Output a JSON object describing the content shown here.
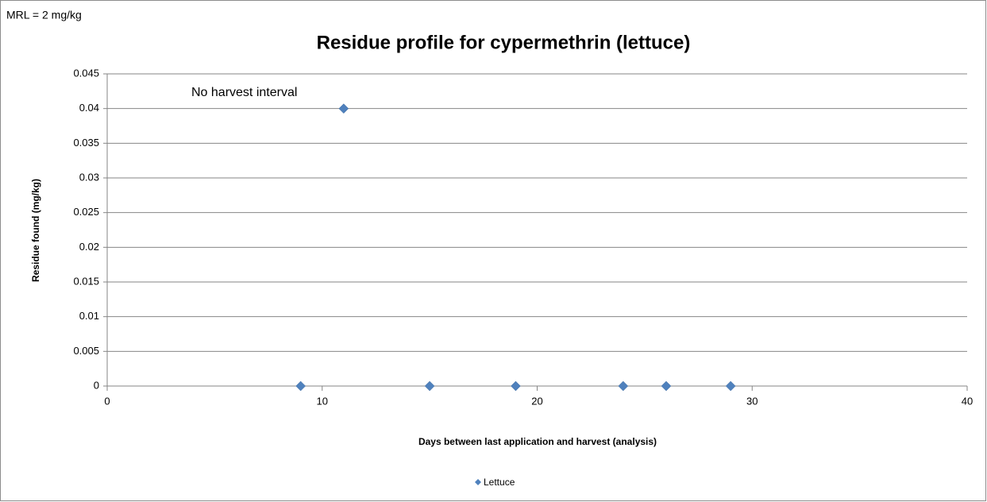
{
  "chart_data": {
    "type": "scatter",
    "title": "Residue profile for cypermethrin (lettuce)",
    "x_label": "Days between last application  and harvest (analysis)",
    "y_label": "Residue found (mg/kg)",
    "annotations": [
      "MRL = 2 mg/kg",
      "No harvest interval"
    ],
    "series": [
      {
        "name": "Lettuce",
        "color": "#4f81bd",
        "x": [
          9,
          11,
          15,
          19,
          24,
          26,
          29
        ],
        "values": [
          0,
          0.04,
          0,
          0,
          0,
          0,
          0
        ]
      }
    ],
    "xlim": [
      0,
      40
    ],
    "xticks": [
      0,
      10,
      20,
      30,
      40
    ],
    "ylim": [
      0,
      0.045
    ],
    "yticks": [
      0,
      0.005,
      0.01,
      0.015,
      0.02,
      0.025,
      0.03,
      0.035,
      0.04,
      0.045
    ],
    "grid": true,
    "legend": "bottom"
  }
}
